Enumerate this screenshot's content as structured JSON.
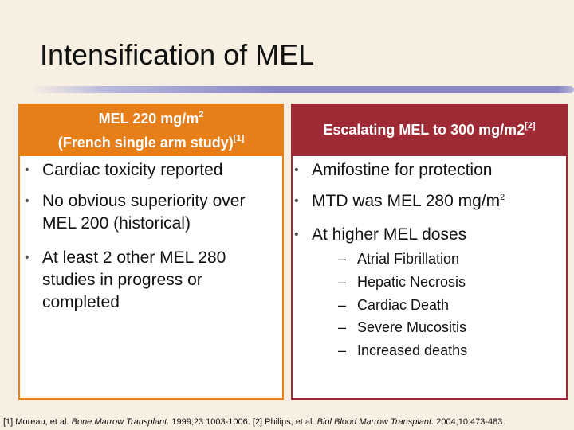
{
  "slide": {
    "title": "Intensification of MEL",
    "left": {
      "header_line1": "MEL 220 mg/m",
      "header_line1_sup": "2",
      "header_line2": "(French single arm study)",
      "header_line2_sup": "[1]",
      "bullets": [
        "Cardiac toxicity reported",
        "No obvious superiority over MEL 200 (historical)",
        "At least 2 other MEL 280 studies in progress or completed"
      ]
    },
    "right": {
      "header": "Escalating MEL to 300 mg/m2",
      "header_sup": "[2]",
      "bullets": [
        "Amifostine for protection",
        "MTD was MEL 280 mg/m",
        "At higher MEL doses"
      ],
      "bullet2_sup": "2",
      "sub_items": [
        "Atrial Fibrillation",
        "Hepatic Necrosis",
        "Cardiac Death",
        "Severe Mucositis",
        "Increased deaths"
      ]
    },
    "bullet_symbol": "•",
    "dash_symbol": "–",
    "footnote": {
      "part1": "[1] Moreau, et al. ",
      "journal1": "Bone Marrow Transplant.",
      "part2": " 1999;23:1003-1006. [2] Philips, et al. ",
      "journal2": "Biol Blood Marrow Transplant.",
      "part3": " 2004;10:473-483."
    }
  }
}
